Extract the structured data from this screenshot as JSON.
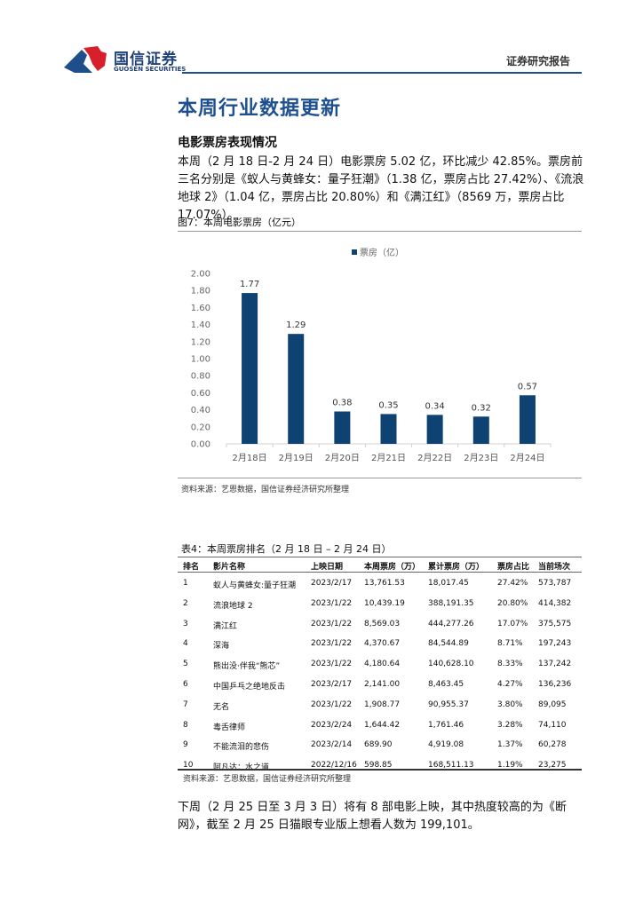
{
  "header": {
    "brand_cn": "国信证券",
    "brand_en": "GUOSEN SECURITIES",
    "report_type": "证券研究报告",
    "colors": {
      "brand_blue": "#1e4f8a",
      "brand_red": "#d7202b"
    }
  },
  "page_title": "本周行业数据更新",
  "section_title": "电影票房表现情况",
  "paragraph1": "本周（2 月 18 日-2 月 24 日）电影票房 5.02 亿，环比减少 42.85%。票房前三名分别是《蚁人与黄蜂女：量子狂潮》（1.38 亿，票房占比 27.42%）、《流浪地球 2》（1.04 亿，票房占比 20.80%）和《满江红》（8569 万，票房占比 17.07%）。",
  "figure": {
    "caption": "图7：本周电影票房（亿元）",
    "source": "资料来源：艺恩数据，国信证券经济研究所整理"
  },
  "chart_data": {
    "type": "bar",
    "title": "",
    "legend": [
      "票房（亿）"
    ],
    "legend_position": "top",
    "categories": [
      "2月18日",
      "2月19日",
      "2月20日",
      "2月21日",
      "2月22日",
      "2月23日",
      "2月24日"
    ],
    "values": [
      1.77,
      1.29,
      0.38,
      0.35,
      0.34,
      0.32,
      0.57
    ],
    "value_labels": [
      "1.77",
      "1.29",
      "0.38",
      "0.35",
      "0.34",
      "0.32",
      "0.57"
    ],
    "yticks": [
      "0.00",
      "0.20",
      "0.40",
      "0.60",
      "0.80",
      "1.00",
      "1.20",
      "1.40",
      "1.60",
      "1.80",
      "2.00"
    ],
    "ylim": [
      0,
      2.0
    ],
    "xlabel": "",
    "ylabel": "",
    "grid": false,
    "bar_color": "#0d4273"
  },
  "table": {
    "caption": "表4：本周票房排名（2 月 18 日 – 2 月 24 日）",
    "headers": [
      "排名",
      "影片名称",
      "上映日期",
      "本周票房（万）",
      "累计票房（万）",
      "票房占比",
      "当前场次"
    ],
    "rows": [
      [
        "1",
        "蚁人与黄蜂女:量子狂潮",
        "2023/2/17",
        "13,761.53",
        "18,017.45",
        "27.42%",
        "573,787"
      ],
      [
        "2",
        "流浪地球 2",
        "2023/1/22",
        "10,439.19",
        "388,191.35",
        "20.80%",
        "414,382"
      ],
      [
        "3",
        "满江红",
        "2023/1/22",
        "8,569.03",
        "444,277.26",
        "17.07%",
        "375,575"
      ],
      [
        "4",
        "深海",
        "2023/1/22",
        "4,370.67",
        "84,544.89",
        "8.71%",
        "197,243"
      ],
      [
        "5",
        "熊出没·伴我“熊芯”",
        "2023/1/22",
        "4,180.64",
        "140,628.10",
        "8.33%",
        "137,242"
      ],
      [
        "6",
        "中国乒乓之绝地反击",
        "2023/2/17",
        "2,141.00",
        "8,463.45",
        "4.27%",
        "136,236"
      ],
      [
        "7",
        "无名",
        "2023/1/22",
        "1,908.77",
        "90,955.37",
        "3.80%",
        "89,095"
      ],
      [
        "8",
        "毒舌律师",
        "2023/2/24",
        "1,644.42",
        "1,761.46",
        "3.28%",
        "74,110"
      ],
      [
        "9",
        "不能流泪的悲伤",
        "2023/2/14",
        "689.90",
        "4,919.08",
        "1.37%",
        "60,278"
      ],
      [
        "10",
        "阿凡达：水之道",
        "2022/12/16",
        "598.85",
        "168,511.13",
        "1.19%",
        "23,275"
      ]
    ],
    "source": "资料来源：艺恩数据，国信证券经济研究所整理"
  },
  "paragraph2": "下周（2 月 25 日至 3 月 3 日）将有 8 部电影上映，其中热度较高的为《断网》，截至 2 月 25 日猫眼专业版上想看人数为 199,101。"
}
